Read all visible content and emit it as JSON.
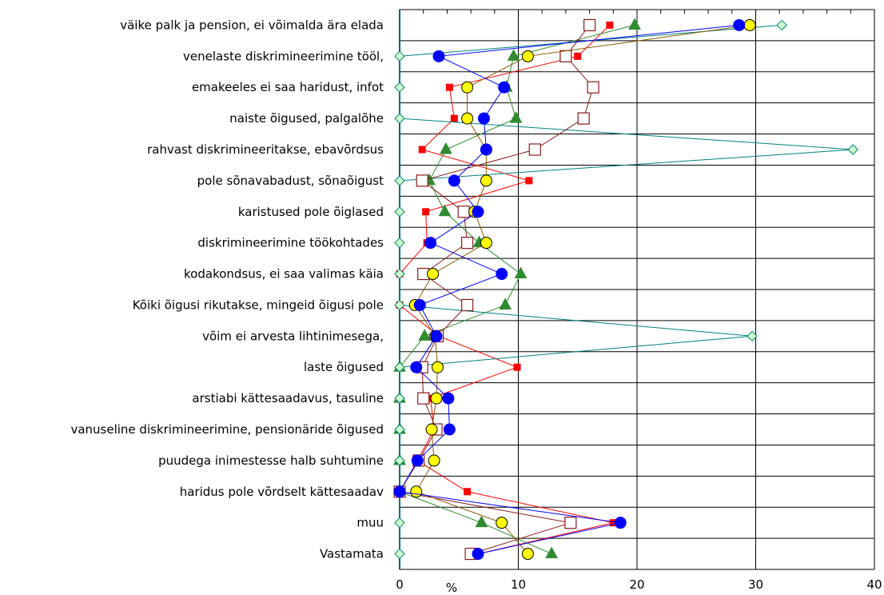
{
  "chart_data": {
    "type": "line",
    "orientation": "horizontal",
    "title": "",
    "xlabel": "%",
    "ylabel": "",
    "xlim": [
      0,
      40
    ],
    "x_ticks": [
      "0",
      "10",
      "20",
      "30",
      "40"
    ],
    "grid": true,
    "legend": "none",
    "categories": [
      "väike palk ja pension, ei võimalda ära elada",
      "venelaste diskrimineerimine tööl,",
      "emakeeles ei saa haridust, infot",
      "naiste õigused, palgalõhe",
      "rahvast diskrimineeritakse, ebavõrdsus",
      "pole sõnavabadust, sõnaõigust",
      "karistused pole õiglased",
      "diskrimineerimine töökohtades",
      "kodakondsus, ei saa valimas käia",
      "Kõiki õigusi rikutakse, mingeid õigusi pole",
      "võim ei arvesta lihtinimesega,",
      "laste õigused",
      "arstiabi kättesaadavus, tasuline",
      "vanuseline diskrimineerimine, pensionäride õigused",
      "puudega inimestesse halb suhtumine",
      "haridus pole võrdselt kättesaadav",
      "muu",
      "Vastamata"
    ],
    "series": [
      {
        "color": "#ff0000",
        "marker": "small-square",
        "values": [
          17.7,
          15.0,
          4.2,
          4.6,
          1.9,
          10.9,
          2.2,
          2.3,
          0.0,
          0.0,
          3.3,
          9.9,
          2.6,
          2.9,
          1.5,
          5.7,
          18.0,
          6.6
        ]
      },
      {
        "color": "#2e8b2e",
        "marker": "triangle",
        "values": [
          19.8,
          9.6,
          9.0,
          9.8,
          3.9,
          2.5,
          3.8,
          6.7,
          10.2,
          8.9,
          2.1,
          0.0,
          0.0,
          0.0,
          0.0,
          0.0,
          6.9,
          12.8
        ]
      },
      {
        "color": "#008080",
        "marker": "diamond",
        "values": [
          32.2,
          0.0,
          0.0,
          0.0,
          38.2,
          0.0,
          0.0,
          0.0,
          0.0,
          0.0,
          29.7,
          0.0,
          0.0,
          0.0,
          0.0,
          0.0,
          0.0,
          0.0
        ]
      },
      {
        "color": "#8b1a1a",
        "marker": "square",
        "values": [
          16.0,
          14.0,
          16.3,
          15.5,
          11.4,
          1.9,
          5.4,
          5.7,
          2.0,
          5.7,
          3.2,
          1.9,
          2.0,
          3.1,
          1.6,
          0.0,
          14.4,
          6.0
        ]
      },
      {
        "color": "#ffff00",
        "marker": "circle",
        "values": [
          29.5,
          10.8,
          5.7,
          5.7,
          7.3,
          7.3,
          6.3,
          7.3,
          2.8,
          1.3,
          3.0,
          3.2,
          3.1,
          2.7,
          2.9,
          1.4,
          8.6,
          10.8
        ]
      },
      {
        "color": "#0000ff",
        "marker": "circle",
        "values": [
          28.6,
          3.3,
          8.8,
          7.1,
          7.3,
          4.6,
          6.6,
          2.6,
          8.6,
          1.7,
          3.1,
          1.4,
          4.1,
          4.2,
          1.5,
          0.0,
          18.6,
          6.6
        ]
      }
    ]
  }
}
